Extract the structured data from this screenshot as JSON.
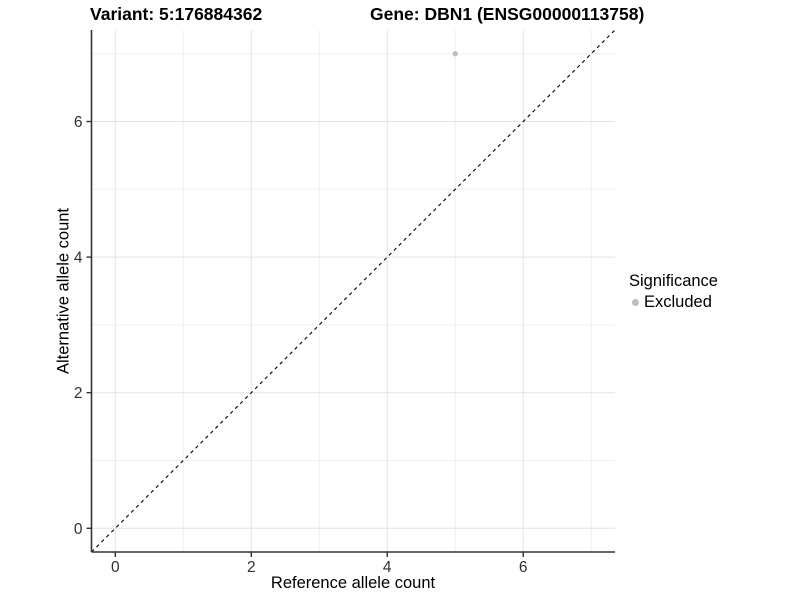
{
  "chart_data": {
    "type": "scatter",
    "titles": {
      "variant": "Variant: 5:176884362",
      "gene": "Gene: DBN1 (ENSG00000113758)"
    },
    "xlabel": "Reference allele count",
    "ylabel": "Alternative allele count",
    "xlim": [
      -0.35,
      7.35
    ],
    "ylim": [
      -0.35,
      7.35
    ],
    "x_ticks": [
      0,
      2,
      4,
      6
    ],
    "y_ticks": [
      0,
      2,
      4,
      6
    ],
    "x_minor_ticks": [
      1,
      3,
      5,
      7
    ],
    "y_minor_ticks": [
      1,
      3,
      5,
      7
    ],
    "grid": true,
    "points": [
      {
        "x": 5,
        "y": 7,
        "series": "Excluded",
        "color": "#bdbdbd"
      }
    ],
    "reference_line": {
      "style": "dashed",
      "slope": 1,
      "intercept": 0,
      "color": "#000000"
    },
    "legend": {
      "title": "Significance",
      "position": "right",
      "items": [
        {
          "label": "Excluded",
          "color": "#bdbdbd"
        }
      ]
    },
    "colors": {
      "axis_line": "#333333",
      "tick_text": "#303030",
      "grid_major": "#e4e4e4",
      "grid_minor": "#f0f0f0"
    }
  }
}
